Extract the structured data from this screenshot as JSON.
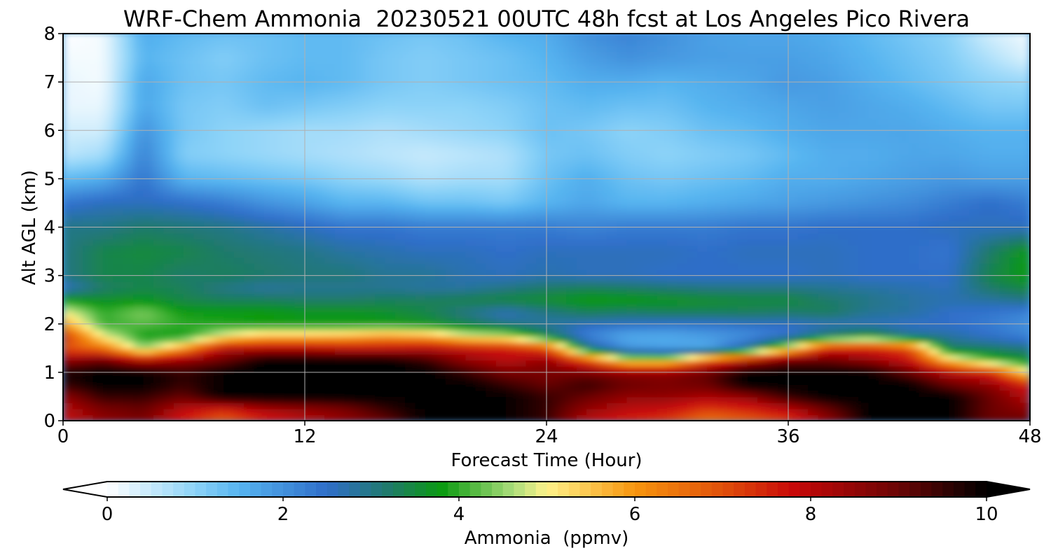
{
  "chart_data": {
    "type": "heatmap",
    "title": "WRF-Chem Ammonia  20230521 00UTC 48h fcst at Los Angeles Pico Rivera",
    "xlabel": "Forecast Time (Hour)",
    "ylabel": "Alt AGL (km)",
    "xlim": [
      0,
      48
    ],
    "ylim": [
      0,
      8
    ],
    "x_ticks": [
      "0",
      "12",
      "24",
      "36",
      "48"
    ],
    "y_ticks": [
      "0",
      "1",
      "2",
      "3",
      "4",
      "5",
      "6",
      "7",
      "8"
    ],
    "grid": true,
    "colorbar": {
      "label": "Ammonia  (ppmv)",
      "range": [
        0,
        10
      ],
      "ticks": [
        "0",
        "2",
        "4",
        "6",
        "8",
        "10"
      ],
      "extend": "both",
      "stops": [
        {
          "value": 0,
          "color": "#ffffff"
        },
        {
          "value": 1,
          "color": "#8dd3f8"
        },
        {
          "value": 1.5,
          "color": "#56b4f0"
        },
        {
          "value": 2.5,
          "color": "#2f6ec9"
        },
        {
          "value": 3.2,
          "color": "#1f7a6a"
        },
        {
          "value": 3.8,
          "color": "#0a9a10"
        },
        {
          "value": 4.6,
          "color": "#a8dc7a"
        },
        {
          "value": 5.0,
          "color": "#fff38a"
        },
        {
          "value": 6.0,
          "color": "#f7950e"
        },
        {
          "value": 7.0,
          "color": "#e0500a"
        },
        {
          "value": 7.8,
          "color": "#c80808"
        },
        {
          "value": 9.0,
          "color": "#6a0505"
        },
        {
          "value": 10,
          "color": "#000000"
        }
      ]
    },
    "x_hours": [
      0,
      2,
      4,
      6,
      8,
      10,
      12,
      14,
      16,
      18,
      20,
      22,
      24,
      26,
      28,
      30,
      32,
      34,
      36,
      38,
      40,
      42,
      44,
      46,
      48
    ],
    "y_km": [
      0,
      0.25,
      0.5,
      0.75,
      1.0,
      1.25,
      1.5,
      1.75,
      2.0,
      2.25,
      2.5,
      2.75,
      3.0,
      3.5,
      4.0,
      4.5,
      5.0,
      5.5,
      6.0,
      6.5,
      7.0,
      7.5,
      8.0
    ],
    "values_by_altitude": [
      [
        7.8,
        8.5,
        8.8,
        7.5,
        6.8,
        7.5,
        8.0,
        8.5,
        9.0,
        10,
        10,
        10,
        9.5,
        8.0,
        7.5,
        7.2,
        6.5,
        6.8,
        7.2,
        8.5,
        10,
        10,
        10,
        9.0,
        9.0
      ],
      [
        8.0,
        8.8,
        9.0,
        8.0,
        7.5,
        8.2,
        8.5,
        8.8,
        9.5,
        10,
        10,
        10,
        9.5,
        8.5,
        8.0,
        7.8,
        7.2,
        7.5,
        8.0,
        9.0,
        10,
        10,
        10,
        9.0,
        8.5
      ],
      [
        8.5,
        9.5,
        9.5,
        9.0,
        10,
        10,
        10,
        10,
        10,
        10,
        10,
        10,
        9.5,
        9.0,
        8.5,
        8.5,
        8.2,
        8.5,
        9.5,
        10,
        10,
        10,
        10,
        9.0,
        8.0
      ],
      [
        9.5,
        10,
        10,
        9.5,
        10,
        10,
        10,
        10,
        10,
        10,
        10,
        9.5,
        9.0,
        9.5,
        9.0,
        8.8,
        9.0,
        10,
        10,
        10,
        10,
        10,
        9.0,
        8.5,
        7.5
      ],
      [
        9.8,
        10,
        10,
        9.5,
        10,
        10,
        10,
        10,
        10,
        10,
        9.5,
        8.8,
        8.8,
        8.8,
        8.5,
        8.5,
        9.0,
        10,
        10,
        10,
        10,
        9.0,
        8.0,
        7.5,
        5.0
      ],
      [
        8.5,
        9.0,
        8.0,
        8.5,
        9.0,
        10,
        10,
        10,
        10,
        9.5,
        8.5,
        8.0,
        8.5,
        7.0,
        5.0,
        5.0,
        6.8,
        8.0,
        9.0,
        9.0,
        8.5,
        7.8,
        5.5,
        4.2,
        3.6
      ],
      [
        7.0,
        6.5,
        4.5,
        6.0,
        8.0,
        8.0,
        8.0,
        7.8,
        7.8,
        8.0,
        7.8,
        7.6,
        7.0,
        3.2,
        2.0,
        1.8,
        1.7,
        3.0,
        5.0,
        7.5,
        7.5,
        7.0,
        3.3,
        3.2,
        3.0
      ],
      [
        7.5,
        5.0,
        3.8,
        3.8,
        5.0,
        5.6,
        5.6,
        5.7,
        6.0,
        5.8,
        5.0,
        4.8,
        3.5,
        2.2,
        1.6,
        1.6,
        1.8,
        2.0,
        2.5,
        3.3,
        3.8,
        3.0,
        2.8,
        2.5,
        2.2
      ],
      [
        6.0,
        4.0,
        4.2,
        4.0,
        3.9,
        3.8,
        3.8,
        3.8,
        3.8,
        3.7,
        3.4,
        3.0,
        2.8,
        2.6,
        2.5,
        2.4,
        2.4,
        2.5,
        2.5,
        2.6,
        2.6,
        2.5,
        2.5,
        2.3,
        2.0
      ],
      [
        5.0,
        4.0,
        4.4,
        3.8,
        3.8,
        3.8,
        3.7,
        3.7,
        3.6,
        3.4,
        3.0,
        2.6,
        3.0,
        3.3,
        3.2,
        3.3,
        3.3,
        3.3,
        3.2,
        3.3,
        2.9,
        2.8,
        2.5,
        2.4,
        2.2
      ],
      [
        3.8,
        3.6,
        3.7,
        3.4,
        3.3,
        3.3,
        3.2,
        3.2,
        3.3,
        3.3,
        3.4,
        3.5,
        3.6,
        3.8,
        3.8,
        3.7,
        3.6,
        3.5,
        3.5,
        3.2,
        3.0,
        2.8,
        2.7,
        2.8,
        3.0
      ],
      [
        2.5,
        3.2,
        3.4,
        3.3,
        3.0,
        2.8,
        2.9,
        2.9,
        2.9,
        2.8,
        2.8,
        3.0,
        3.2,
        3.3,
        3.2,
        3.1,
        3.0,
        3.0,
        3.0,
        2.9,
        2.8,
        2.7,
        2.6,
        3.2,
        3.5
      ],
      [
        3.0,
        3.4,
        3.4,
        3.2,
        3.3,
        3.2,
        3.1,
        3.1,
        2.9,
        2.9,
        2.7,
        2.6,
        2.7,
        2.6,
        2.6,
        2.5,
        2.5,
        2.5,
        2.5,
        2.6,
        2.5,
        2.5,
        2.5,
        3.4,
        3.8
      ],
      [
        3.0,
        3.4,
        3.5,
        3.4,
        3.2,
        3.1,
        3.0,
        2.8,
        2.7,
        2.6,
        2.6,
        2.5,
        2.6,
        2.6,
        2.6,
        2.6,
        2.5,
        2.6,
        2.6,
        2.6,
        2.5,
        2.5,
        2.4,
        3.2,
        3.8
      ],
      [
        3.0,
        3.0,
        3.2,
        3.1,
        3.0,
        2.8,
        2.6,
        2.4,
        2.4,
        2.3,
        2.3,
        2.3,
        2.3,
        2.2,
        2.3,
        2.3,
        2.3,
        2.4,
        2.4,
        2.5,
        2.5,
        2.5,
        2.6,
        2.6,
        2.6
      ],
      [
        2.4,
        2.6,
        2.6,
        2.5,
        2.3,
        2.0,
        1.8,
        1.5,
        1.5,
        1.3,
        1.3,
        1.2,
        1.5,
        1.7,
        1.5,
        1.5,
        1.6,
        1.7,
        1.8,
        1.9,
        2.0,
        2.1,
        2.3,
        2.5,
        2.3
      ],
      [
        1.4,
        1.6,
        2.4,
        1.5,
        1.4,
        1.3,
        1.2,
        1.0,
        0.9,
        0.7,
        0.8,
        0.8,
        1.3,
        1.6,
        1.3,
        1.2,
        1.3,
        1.4,
        1.6,
        1.6,
        1.7,
        1.8,
        1.9,
        1.8,
        1.8
      ],
      [
        0.6,
        0.8,
        2.2,
        1.1,
        1.0,
        0.9,
        0.8,
        0.7,
        0.6,
        0.5,
        0.6,
        0.7,
        1.2,
        1.3,
        1.1,
        1.0,
        1.1,
        1.2,
        1.4,
        1.6,
        1.6,
        1.7,
        1.7,
        1.6,
        1.6
      ],
      [
        0.4,
        0.4,
        2.0,
        1.2,
        1.0,
        0.9,
        0.8,
        0.8,
        0.7,
        0.8,
        0.9,
        1.0,
        1.3,
        1.2,
        1.0,
        1.1,
        1.3,
        1.4,
        1.6,
        1.7,
        1.7,
        1.7,
        1.6,
        1.5,
        1.5
      ],
      [
        0.2,
        0.2,
        1.7,
        1.2,
        1.1,
        1.3,
        1.2,
        1.1,
        1.0,
        1.0,
        1.0,
        1.1,
        1.3,
        1.4,
        1.3,
        1.3,
        1.5,
        1.6,
        1.7,
        1.8,
        1.7,
        1.6,
        1.4,
        1.2,
        1.2
      ],
      [
        0.2,
        0.1,
        1.7,
        1.3,
        1.2,
        1.4,
        1.5,
        1.4,
        1.2,
        1.1,
        1.2,
        1.3,
        1.4,
        1.6,
        1.6,
        1.5,
        1.6,
        1.7,
        1.9,
        1.8,
        1.6,
        1.4,
        1.2,
        1.0,
        0.9
      ],
      [
        0.1,
        0.1,
        1.5,
        1.3,
        1.1,
        1.3,
        1.4,
        1.4,
        1.2,
        1.1,
        1.2,
        1.3,
        1.5,
        1.8,
        2.0,
        1.9,
        1.8,
        1.8,
        1.8,
        1.7,
        1.5,
        1.3,
        1.1,
        0.7,
        0.3
      ],
      [
        0.0,
        0.1,
        1.6,
        1.4,
        1.3,
        1.3,
        1.4,
        1.4,
        1.3,
        1.2,
        1.3,
        1.5,
        1.6,
        2.0,
        2.2,
        2.0,
        1.8,
        1.7,
        1.7,
        1.6,
        1.4,
        1.2,
        1.0,
        0.4,
        0.1
      ]
    ]
  }
}
